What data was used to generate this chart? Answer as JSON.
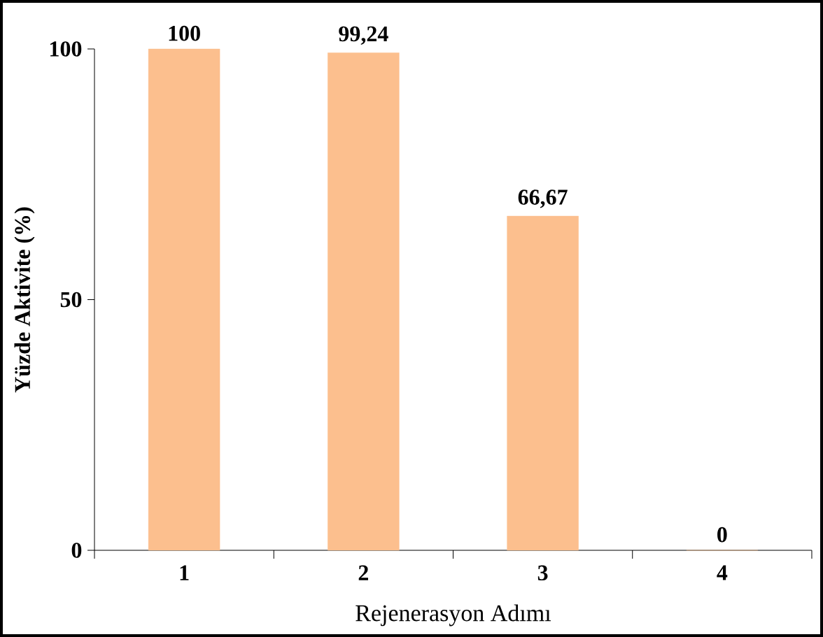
{
  "chart_data": {
    "type": "bar",
    "xlabel": "Rejenerasyon Adımı",
    "ylabel": "Yüzde Aktivite (%)",
    "categories": [
      "1",
      "2",
      "3",
      "4"
    ],
    "values": [
      100,
      99.24,
      66.67,
      0
    ],
    "value_labels": [
      "100",
      "99,24",
      "66,67",
      "0"
    ],
    "color": "#fcbf8e",
    "ylim": [
      0,
      100
    ],
    "yticks": [
      0,
      50,
      100
    ]
  }
}
